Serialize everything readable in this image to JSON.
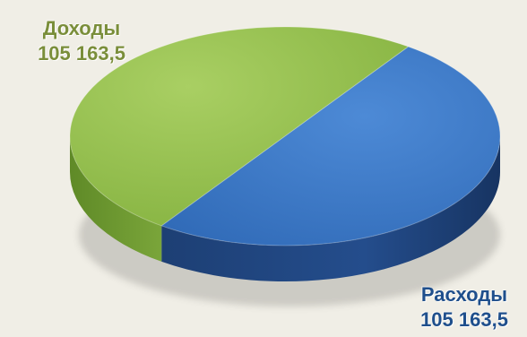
{
  "chart_data": {
    "type": "pie",
    "title": "",
    "style": "3d",
    "slices": [
      {
        "label": "Доходы",
        "value": 105163.5,
        "value_text": "105 163,5",
        "color": "#8cba45"
      },
      {
        "label": "Расходы",
        "value": 105163.5,
        "value_text": "105 163,5",
        "color": "#3a78c6"
      }
    ]
  },
  "colors": {
    "background": "#f0eee6",
    "income_side": "#6e9732",
    "expense_side": "#1f4680",
    "income_label": "#7a8e3a",
    "expense_label": "#1f4f8c"
  }
}
